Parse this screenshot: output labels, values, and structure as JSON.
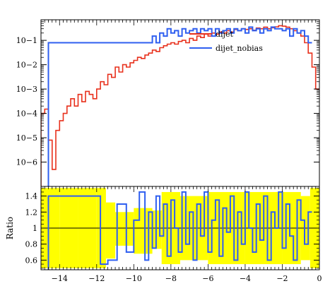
{
  "chart_data": [
    {
      "panel": "main",
      "type": "line",
      "step": true,
      "x_scale": "linear",
      "y_scale": "log",
      "xlim": [
        -15,
        0
      ],
      "ylim": [
        1e-07,
        0.7
      ],
      "y_ticks": [
        1e-06,
        1e-05,
        0.0001,
        0.001,
        0.01,
        0.1
      ],
      "y_tick_labels": [
        "10−6",
        "10−5",
        "10−4",
        "10−3",
        "10−2",
        "10−1"
      ],
      "legend_position": "top-right",
      "series": [
        {
          "name": "dijet",
          "color": "#e8301c",
          "x": [
            -15.0,
            -14.8,
            -14.6,
            -14.4,
            -14.2,
            -14.0,
            -13.8,
            -13.6,
            -13.4,
            -13.2,
            -13.0,
            -12.8,
            -12.6,
            -12.4,
            -12.2,
            -12.0,
            -11.8,
            -11.6,
            -11.4,
            -11.2,
            -11.0,
            -10.8,
            -10.6,
            -10.4,
            -10.2,
            -10.0,
            -9.8,
            -9.6,
            -9.4,
            -9.2,
            -9.0,
            -8.8,
            -8.6,
            -8.4,
            -8.2,
            -8.0,
            -7.8,
            -7.6,
            -7.4,
            -7.2,
            -7.0,
            -6.8,
            -6.6,
            -6.4,
            -6.2,
            -6.0,
            -5.8,
            -5.6,
            -5.4,
            -5.2,
            -5.0,
            -4.8,
            -4.6,
            -4.4,
            -4.2,
            -4.0,
            -3.8,
            -3.6,
            -3.4,
            -3.2,
            -3.0,
            -2.8,
            -2.6,
            -2.4,
            -2.2,
            -2.0,
            -1.8,
            -1.6,
            -1.4,
            -1.2,
            -1.0,
            -0.8,
            -0.6,
            -0.4,
            -0.2
          ],
          "y": [
            0.0001,
            0.00015,
            8e-06,
            5e-07,
            2e-05,
            5e-05,
            0.0001,
            0.0002,
            0.0004,
            0.0002,
            0.0006,
            0.0003,
            0.0008,
            0.0006,
            0.0004,
            0.001,
            0.002,
            0.0015,
            0.004,
            0.003,
            0.008,
            0.005,
            0.01,
            0.008,
            0.012,
            0.015,
            0.02,
            0.018,
            0.025,
            0.03,
            0.04,
            0.035,
            0.05,
            0.06,
            0.07,
            0.08,
            0.07,
            0.09,
            0.1,
            0.08,
            0.12,
            0.1,
            0.15,
            0.13,
            0.18,
            0.15,
            0.2,
            0.18,
            0.22,
            0.2,
            0.25,
            0.22,
            0.28,
            0.25,
            0.3,
            0.28,
            0.3,
            0.26,
            0.32,
            0.3,
            0.35,
            0.3,
            0.33,
            0.36,
            0.4,
            0.38,
            0.35,
            0.3,
            0.25,
            0.2,
            0.15,
            0.08,
            0.03,
            0.008,
            0.001
          ]
        },
        {
          "name": "dijet_nobias",
          "color": "#2f5ff0",
          "x": [
            -14.6,
            -11.8,
            -11.4,
            -10.9,
            -10.4,
            -10.0,
            -9.7,
            -9.4,
            -9.2,
            -9.0,
            -8.8,
            -8.6,
            -8.4,
            -8.2,
            -8.0,
            -7.8,
            -7.6,
            -7.4,
            -7.2,
            -7.0,
            -6.8,
            -6.6,
            -6.4,
            -6.2,
            -6.0,
            -5.8,
            -5.6,
            -5.4,
            -5.2,
            -5.0,
            -4.8,
            -4.6,
            -4.4,
            -4.2,
            -4.0,
            -3.8,
            -3.6,
            -3.4,
            -3.2,
            -3.0,
            -2.8,
            -2.6,
            -2.4,
            -2.2,
            -2.0,
            -1.8,
            -1.6,
            -1.4,
            -1.2,
            -1.0,
            -0.8,
            -0.6
          ],
          "y": [
            0.08,
            0.08,
            0.08,
            0.08,
            0.08,
            0.08,
            0.08,
            0.08,
            0.08,
            0.15,
            0.08,
            0.2,
            0.15,
            0.3,
            0.2,
            0.25,
            0.15,
            0.3,
            0.2,
            0.25,
            0.3,
            0.2,
            0.3,
            0.25,
            0.3,
            0.15,
            0.3,
            0.2,
            0.25,
            0.3,
            0.2,
            0.3,
            0.25,
            0.3,
            0.2,
            0.35,
            0.25,
            0.3,
            0.2,
            0.3,
            0.25,
            0.35,
            0.3,
            0.3,
            0.25,
            0.3,
            0.15,
            0.3,
            0.2,
            0.25,
            0.15,
            0.08
          ]
        }
      ]
    },
    {
      "panel": "ratio",
      "type": "line",
      "step": true,
      "x_scale": "linear",
      "xlim": [
        -15,
        0
      ],
      "ylim": [
        0.48,
        1.52
      ],
      "ylabel": "Ratio",
      "x_ticks": [
        -14,
        -12,
        -10,
        -8,
        -6,
        -4,
        -2,
        0
      ],
      "x_tick_labels": [
        "−14",
        "−12",
        "−10",
        "−8",
        "−6",
        "−4",
        "−2",
        "0"
      ],
      "y_ticks": [
        0.6,
        0.8,
        1.0,
        1.2,
        1.4
      ],
      "y_tick_labels": [
        "0.6",
        "0.8",
        "1",
        "1.2",
        "1.4"
      ],
      "reference_line": 1.0,
      "band_color": "#ffff00",
      "band": {
        "x": [
          -15.0,
          -14.0,
          -13.0,
          -12.0,
          -11.5,
          -11.0,
          -10.0,
          -9.0,
          -8.5,
          -7.5,
          -6.0,
          -4.0,
          -2.0,
          -1.0,
          -0.5
        ],
        "lower": [
          0.5,
          0.5,
          0.5,
          0.5,
          0.62,
          0.78,
          0.68,
          0.74,
          0.55,
          0.6,
          0.55,
          0.55,
          0.55,
          0.6,
          0.5
        ],
        "upper": [
          1.5,
          1.5,
          1.5,
          1.5,
          1.32,
          1.2,
          1.25,
          1.22,
          1.45,
          1.4,
          1.45,
          1.45,
          1.45,
          1.4,
          1.5
        ]
      },
      "series": [
        {
          "name": "dijet_nobias",
          "color": "#2f5ff0",
          "x": [
            -14.6,
            -11.8,
            -11.4,
            -10.9,
            -10.4,
            -10.0,
            -9.7,
            -9.4,
            -9.2,
            -9.0,
            -8.8,
            -8.6,
            -8.4,
            -8.2,
            -8.0,
            -7.8,
            -7.6,
            -7.4,
            -7.2,
            -7.0,
            -6.8,
            -6.6,
            -6.4,
            -6.2,
            -6.0,
            -5.8,
            -5.6,
            -5.4,
            -5.2,
            -5.0,
            -4.8,
            -4.6,
            -4.4,
            -4.2,
            -4.0,
            -3.8,
            -3.6,
            -3.4,
            -3.2,
            -3.0,
            -2.8,
            -2.6,
            -2.4,
            -2.2,
            -2.0,
            -1.8,
            -1.6,
            -1.4,
            -1.2,
            -1.0,
            -0.8,
            -0.6
          ],
          "y": [
            1.4,
            0.55,
            0.6,
            1.3,
            0.7,
            1.1,
            1.45,
            0.6,
            1.2,
            0.75,
            1.4,
            0.9,
            1.3,
            0.65,
            1.35,
            1.0,
            0.7,
            1.45,
            0.8,
            1.2,
            0.6,
            1.3,
            0.9,
            1.45,
            0.7,
            1.1,
            1.35,
            0.65,
            1.25,
            0.95,
            1.4,
            0.6,
            1.2,
            0.8,
            1.45,
            1.0,
            0.7,
            1.3,
            0.85,
            1.4,
            0.6,
            1.2,
            1.0,
            1.45,
            0.75,
            1.3,
            0.9,
            0.6,
            1.35,
            1.1,
            0.8,
            1.2
          ]
        }
      ]
    }
  ]
}
